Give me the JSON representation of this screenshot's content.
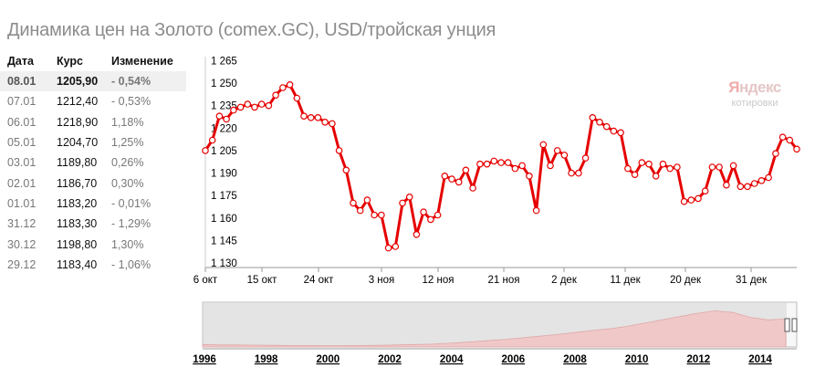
{
  "title": "Динамика цен на Золото (comex.GC), USD/тройская унция",
  "table": {
    "headers": {
      "date": "Дата",
      "rate": "Курс",
      "change": "Изменение"
    },
    "rows": [
      {
        "date": "08.01",
        "rate": "1205,90",
        "change": "- 0,54%"
      },
      {
        "date": "07.01",
        "rate": "1212,40",
        "change": "- 0,53%"
      },
      {
        "date": "06.01",
        "rate": "1218,90",
        "change": "1,18%"
      },
      {
        "date": "05.01",
        "rate": "1204,70",
        "change": "1,25%"
      },
      {
        "date": "03.01",
        "rate": "1189,80",
        "change": "0,26%"
      },
      {
        "date": "02.01",
        "rate": "1186,70",
        "change": "0,30%"
      },
      {
        "date": "01.01",
        "rate": "1183,20",
        "change": "- 0,01%"
      },
      {
        "date": "31.12",
        "rate": "1183,30",
        "change": "- 1,29%"
      },
      {
        "date": "30.12",
        "rate": "1198,80",
        "change": "1,30%"
      },
      {
        "date": "29.12",
        "rate": "1183,40",
        "change": "- 1,06%"
      }
    ]
  },
  "logo": {
    "line1_a": "Я",
    "line1_b": "ндекс",
    "line2": "котировки"
  },
  "colors": {
    "line": "#e60000",
    "marker_fill": "#ffffff",
    "nav_bg": "#e4e4e4",
    "nav_area": "#f0c8c8",
    "grid": "#cccccc"
  },
  "chart_data": {
    "type": "line",
    "series": [
      {
        "values": [
          1205,
          1212,
          1228,
          1226,
          1232,
          1234,
          1236,
          1234,
          1236,
          1235,
          1242,
          1247,
          1249,
          1240,
          1228,
          1227,
          1227,
          1224,
          1223,
          1205,
          1192,
          1170,
          1165,
          1172,
          1162,
          1162,
          1140,
          1141,
          1170,
          1174,
          1149,
          1164,
          1159,
          1162,
          1188,
          1186,
          1184,
          1192,
          1180,
          1196,
          1196,
          1198,
          1197,
          1197,
          1193,
          1195,
          1188,
          1165,
          1209,
          1195,
          1205,
          1202,
          1190,
          1190,
          1200,
          1227,
          1224,
          1221,
          1218,
          1217,
          1193,
          1189,
          1197,
          1196,
          1188,
          1196,
          1193,
          1194,
          1171,
          1172,
          1173,
          1178,
          1194,
          1194,
          1182,
          1195,
          1181,
          1181,
          1183,
          1185,
          1187,
          1203,
          1214,
          1212,
          1206
        ]
      }
    ],
    "x_labels": [
      "6 окт",
      "15 окт",
      "24 окт",
      "3 ноя",
      "12 ноя",
      "21 ноя",
      "2 дек",
      "11 дек",
      "20 дек",
      "31 дек"
    ],
    "y_ticks": [
      "1 130",
      "1 145",
      "1 160",
      "1 175",
      "1 190",
      "1 205",
      "1 220",
      "1 235",
      "1 250",
      "1 265"
    ],
    "ylim": [
      1130,
      1265
    ],
    "grid": false,
    "navigator": {
      "years": [
        "1996",
        "1998",
        "2000",
        "2002",
        "2004",
        "2006",
        "2008",
        "2010",
        "2012",
        "2014"
      ],
      "profile": [
        0.06,
        0.05,
        0.05,
        0.045,
        0.04,
        0.035,
        0.035,
        0.03,
        0.03,
        0.035,
        0.04,
        0.05,
        0.06,
        0.07,
        0.09,
        0.12,
        0.15,
        0.18,
        0.22,
        0.26,
        0.3,
        0.35,
        0.4,
        0.44,
        0.5,
        0.58,
        0.66,
        0.74,
        0.82,
        0.88,
        0.84,
        0.72,
        0.66,
        0.68
      ]
    }
  }
}
